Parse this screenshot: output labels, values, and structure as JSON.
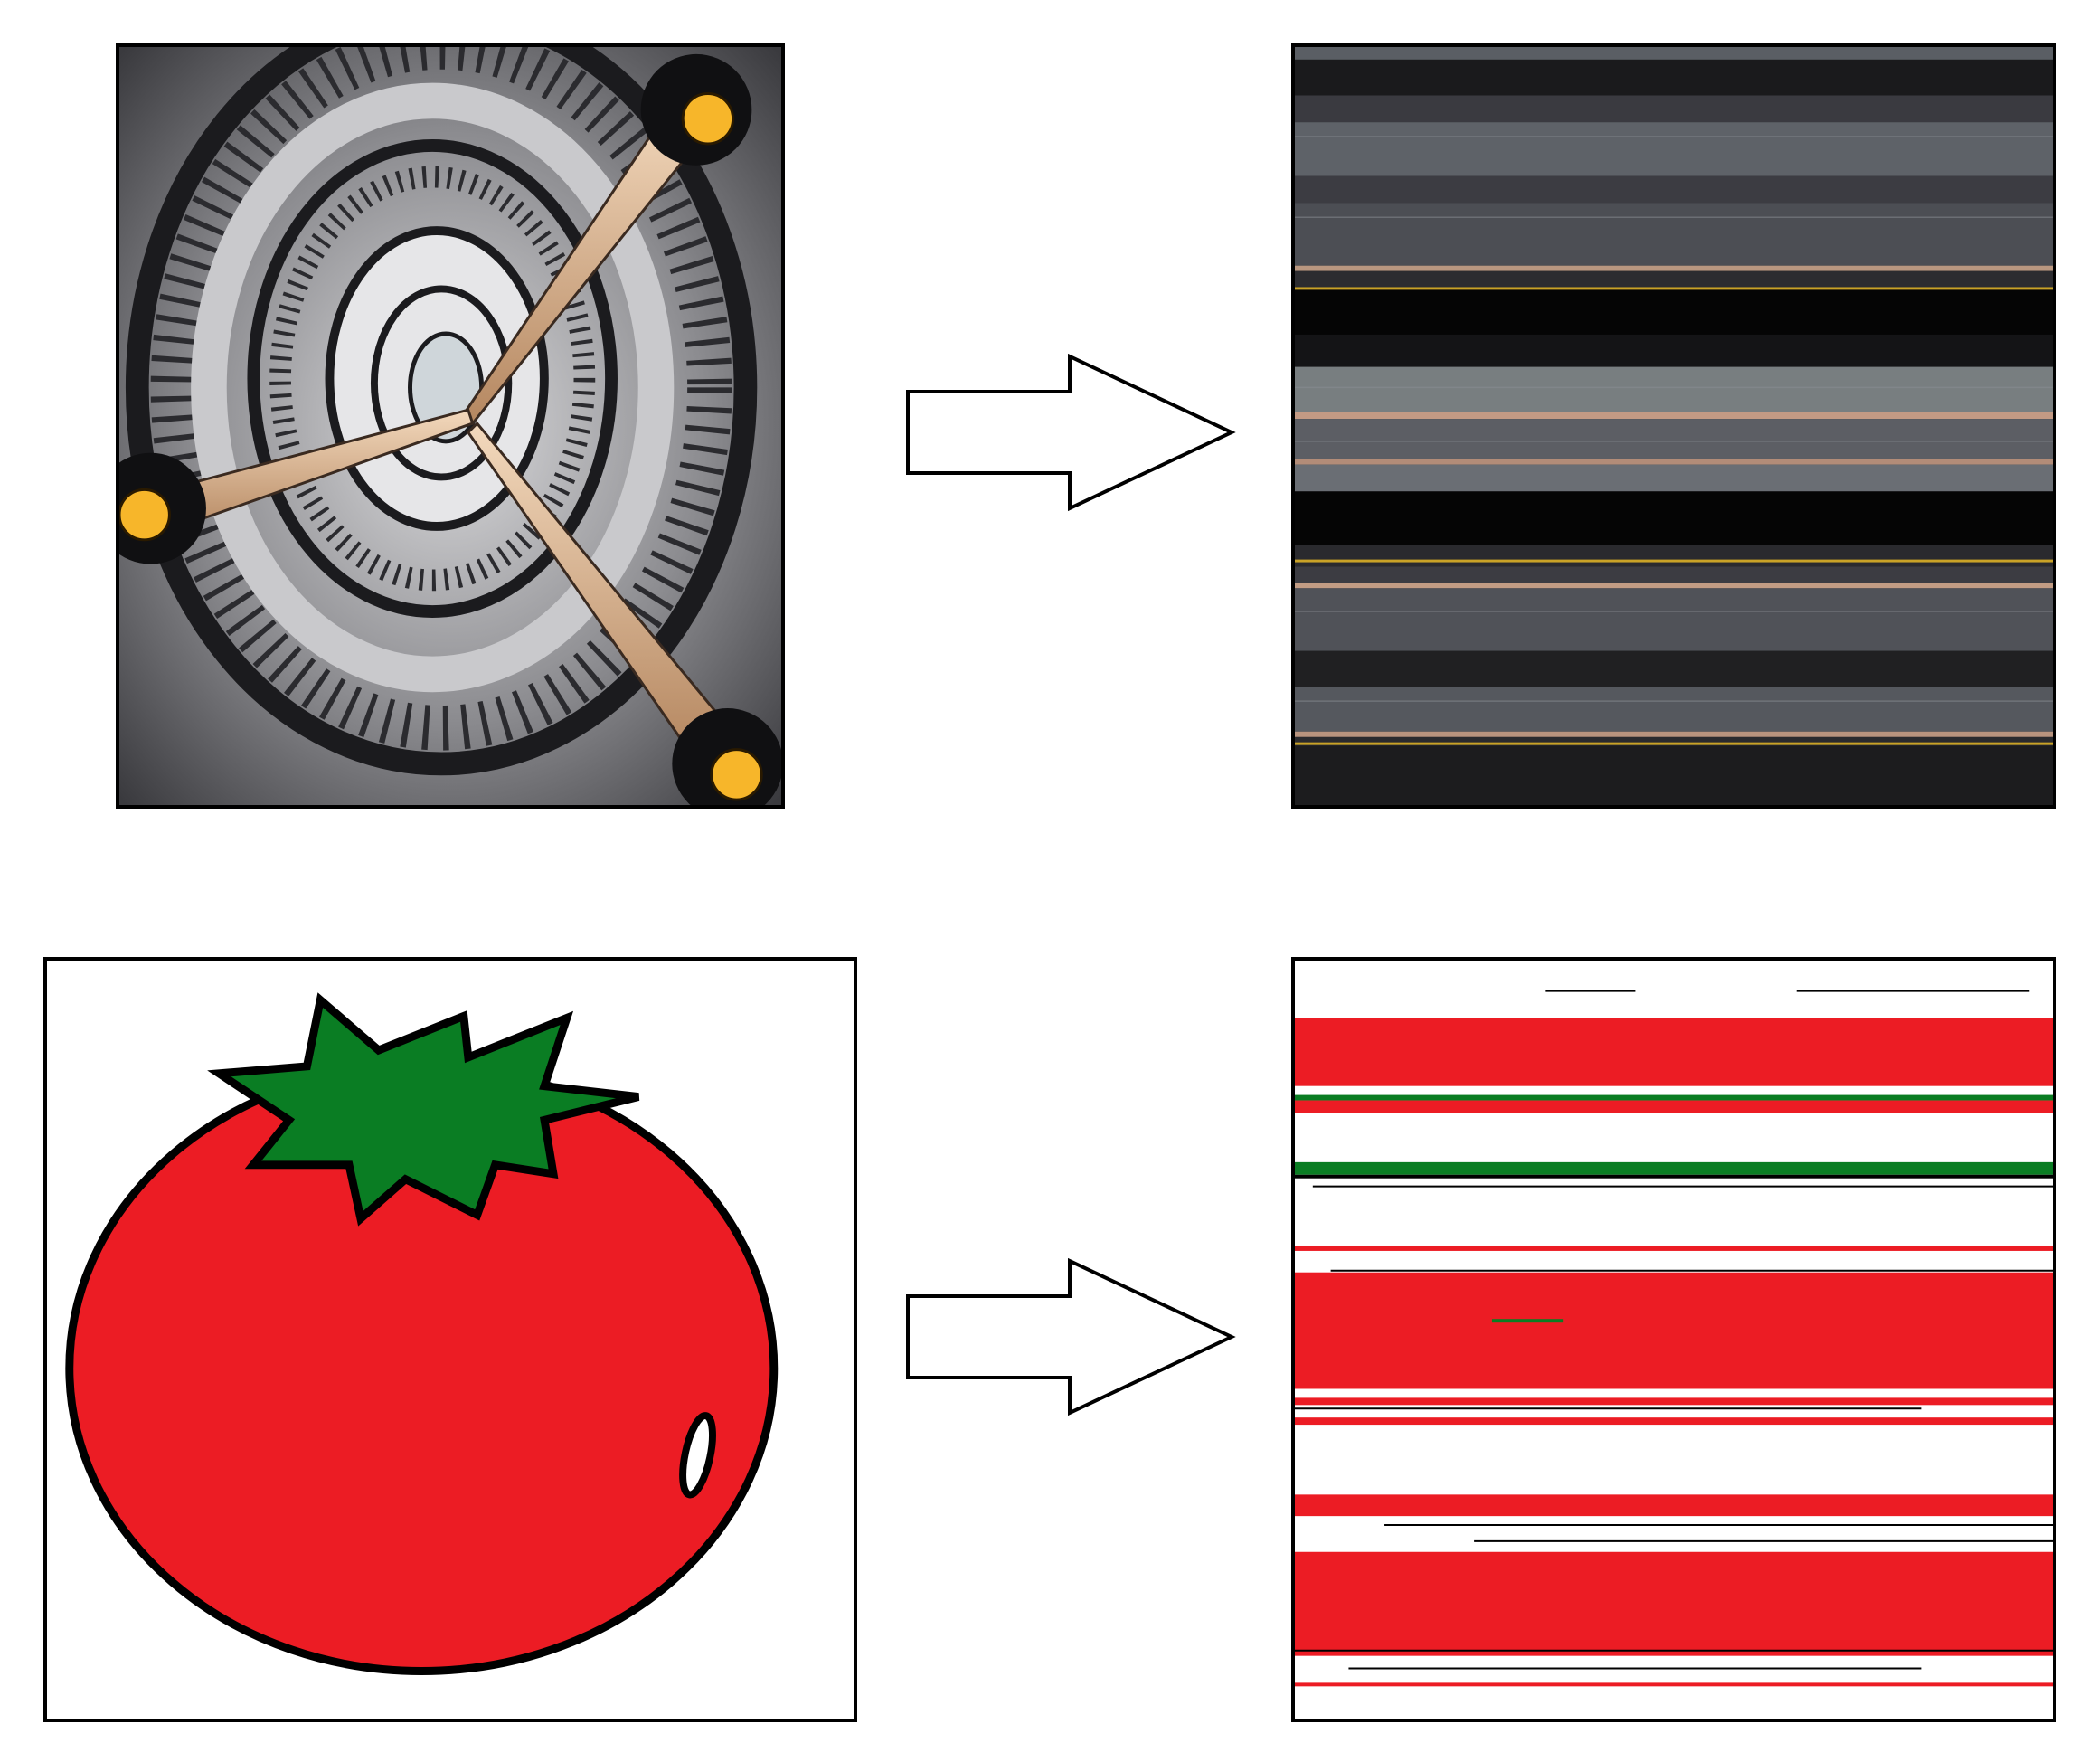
{
  "figure": {
    "rows": [
      {
        "input": {
          "icon": "spiral-staircase-photo-icon"
        },
        "arrow": {
          "icon": "right-arrow-icon"
        },
        "output": {
          "icon": "gray-horizontal-stripes-icon"
        }
      },
      {
        "input": {
          "icon": "tomato-illustration-icon"
        },
        "arrow": {
          "icon": "right-arrow-icon"
        },
        "output": {
          "icon": "red-white-horizontal-stripes-icon"
        }
      }
    ]
  },
  "colors": {
    "tomato_red": "#ec1c24",
    "leaf_green": "#0a7d23",
    "lamp_yellow": "#f7b62a",
    "stair_gray": "#6e6e72",
    "background": "#ffffff"
  }
}
